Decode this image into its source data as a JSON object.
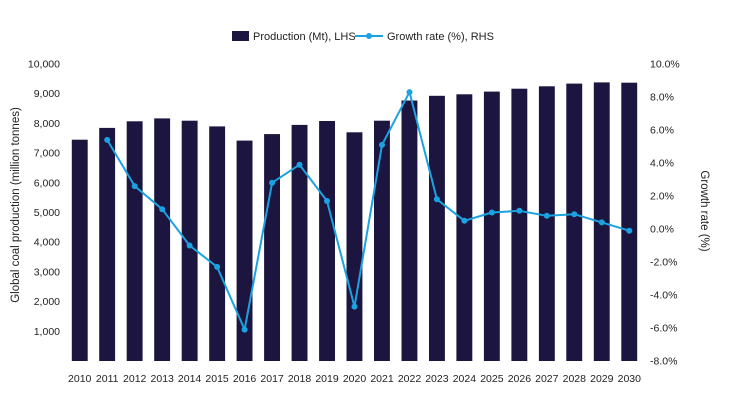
{
  "chart_data": {
    "type": "bar",
    "title": "",
    "categories": [
      "2010",
      "2011",
      "2012",
      "2013",
      "2014",
      "2015",
      "2016",
      "2017",
      "2018",
      "2019",
      "2020",
      "2021",
      "2022",
      "2023",
      "2024",
      "2025",
      "2026",
      "2027",
      "2028",
      "2029",
      "2030"
    ],
    "series": [
      {
        "name": "Production (Mt), LHS",
        "type": "bar",
        "axis": "left",
        "color": "#1c1540",
        "values": [
          7450,
          7850,
          8070,
          8170,
          8090,
          7900,
          7420,
          7640,
          7950,
          8080,
          7700,
          8090,
          8770,
          8930,
          8980,
          9070,
          9170,
          9250,
          9340,
          9380,
          9370
        ]
      },
      {
        "name": "Growth rate (%), RHS",
        "type": "line",
        "axis": "right",
        "color": "#1aa3e0",
        "values": [
          null,
          5.4,
          2.6,
          1.2,
          -1.0,
          -2.3,
          -6.1,
          2.8,
          3.9,
          1.7,
          -4.7,
          5.1,
          8.3,
          1.8,
          0.5,
          1.0,
          1.1,
          0.8,
          0.9,
          0.4,
          -0.1
        ]
      }
    ],
    "ylabel": "Global coal production (million tonnes)",
    "ylabel_right": "Growth rate (%)",
    "ylim": [
      0,
      10000
    ],
    "ylim_right": [
      -8,
      10
    ],
    "yticks": [
      "1,000",
      "2,000",
      "3,000",
      "4,000",
      "5,000",
      "6,000",
      "7,000",
      "8,000",
      "9,000",
      "10,000"
    ],
    "yticks_right": [
      "-8.0%",
      "-6.0%",
      "-4.0%",
      "-2.0%",
      "0.0%",
      "2.0%",
      "4.0%",
      "6.0%",
      "8.0%",
      "10.0%"
    ],
    "legend_position": "top-center",
    "grid": false
  }
}
